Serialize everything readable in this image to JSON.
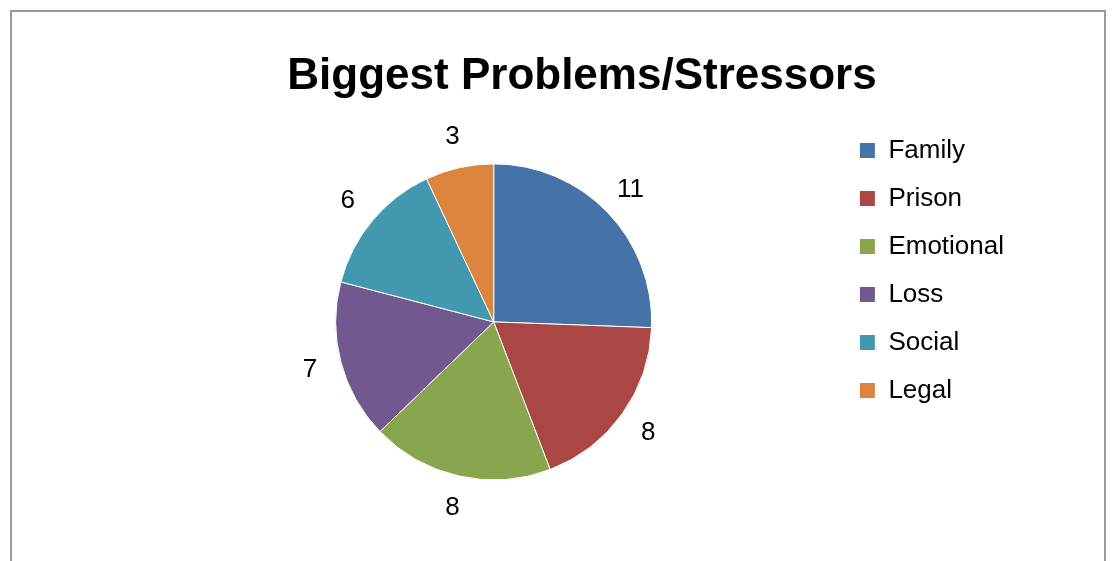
{
  "chart_data": {
    "type": "pie",
    "title": "Biggest Problems/Stressors",
    "categories": [
      "Family",
      "Prison",
      "Emotional",
      "Loss",
      "Social",
      "Legal"
    ],
    "values": [
      11,
      8,
      8,
      7,
      6,
      3
    ],
    "colors": [
      "#4572a7",
      "#aa4643",
      "#89a54e",
      "#71588f",
      "#4198af",
      "#db843d"
    ],
    "data_labels": true,
    "legend": "right"
  }
}
